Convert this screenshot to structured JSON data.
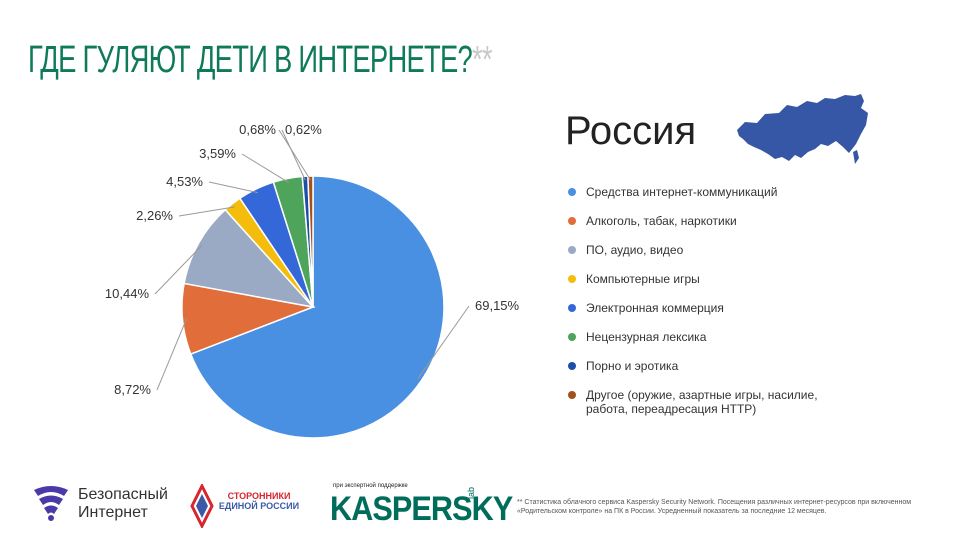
{
  "header": {
    "title": "ГДЕ ГУЛЯЮТ ДЕТИ В ИНТЕРНЕТЕ?",
    "title_mark": "**"
  },
  "region": {
    "name": "Россия",
    "map_icon": "russia-map-icon",
    "map_color": "#3557a6"
  },
  "chart_data": {
    "type": "pie",
    "start_angle_deg": 0,
    "direction": "clockwise",
    "slices": [
      {
        "label": "Средства интернет-коммуникаций",
        "value": 69.15,
        "value_label": "69,15%",
        "color": "#4a90e2"
      },
      {
        "label": "Алкоголь, табак, наркотики",
        "value": 8.72,
        "value_label": "8,72%",
        "color": "#e06d3a"
      },
      {
        "label": "ПО, аудио, видео",
        "value": 10.44,
        "value_label": "10,44%",
        "color": "#9aa9c4"
      },
      {
        "label": "Компьютерные игры",
        "value": 2.26,
        "value_label": "2,26%",
        "color": "#f5bd0b"
      },
      {
        "label": "Электронная коммерция",
        "value": 4.53,
        "value_label": "4,53%",
        "color": "#3468d8"
      },
      {
        "label": "Нецензурная лексика",
        "value": 3.59,
        "value_label": "3,59%",
        "color": "#4ea45a"
      },
      {
        "label": "Порно и эротика",
        "value": 0.68,
        "value_label": "0,68%",
        "color": "#1d4fa8"
      },
      {
        "label": "Другое (оружие, азартные игры, насилие, работа, переадресация HTTP)",
        "value": 0.62,
        "value_label": "0,62%",
        "color": "#a4501b"
      }
    ],
    "legend_position": "right"
  },
  "footer": {
    "bi_logo_icon": "shield-wifi-icon",
    "bi_name": "Безопасный Интернет",
    "supporters_line1": "СТОРОННИКИ",
    "supporters_line2": "ЕДИНОЙ РОССИИ",
    "supporters_icon": "supporters-emblem-icon",
    "kaspersky_note": "при экспертной поддержке",
    "kaspersky_word": "KASPERSKY",
    "kaspersky_lab": "lab",
    "footnote": "** Статистика облачного сервиса Kaspersky Security Network. Посещения различных интернет-ресурсов при включенном «Родительском контроле» на ПК в России. Усредненный показатель за последние 12 месяцев."
  }
}
